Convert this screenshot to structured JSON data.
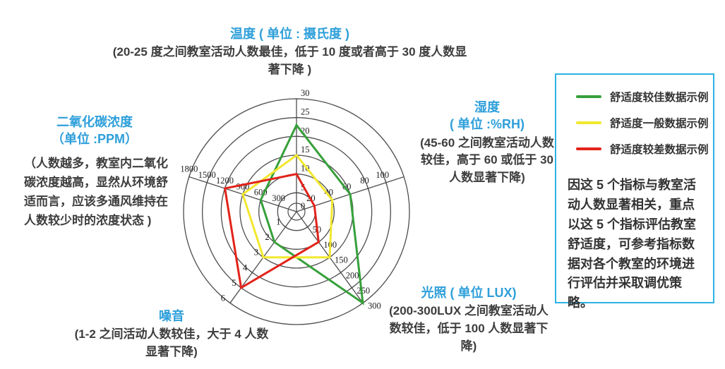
{
  "axis_blocks": {
    "temperature": {
      "title": "温度 ( 单位 : 摄氏度 )",
      "desc": "(20-25 度之间教室活动人数最佳，低于 10 度或者高于 30 度人数显著下降 )"
    },
    "humidity": {
      "title_line1": "湿度",
      "title_line2": "( 单位 :%RH)",
      "desc": "(45-60 之间教室活动人数较佳，高于 60 或低于 30 人数显著下降)"
    },
    "light": {
      "title": "光照 ( 单位 LUX)",
      "desc": "(200-300LUX 之间教室活动人数较佳，低于 100 人数显著下降)"
    },
    "noise": {
      "title": "噪音",
      "desc": "(1-2 之间活动人数较佳，大于 4 人数显著下降)"
    },
    "co2": {
      "title_line1": "二氧化碳浓度",
      "title_line2": "（单位 :PPM）",
      "desc": "（人数越多，教室内二氧化碳浓度越高，显然从环境舒适而言，应该多通风维持在人数较少时的浓度状态 )"
    }
  },
  "note": {
    "text": "因这 5 个指标与教室活动人数显著相关，重点以这 5 个指标评估教室舒适度，可参考指标数据对各个教室的环境进行评估并采取调优策略。"
  },
  "colors": {
    "heading_blue": "#2E9FDA",
    "box_border_cyan": "#2BB3E6",
    "grid": "#4d4d4d",
    "good_green": "#36A03A",
    "average_yellow": "#F2E82E",
    "poor_red": "#E2231A"
  },
  "chart_data": {
    "type": "radar",
    "rings": 6,
    "grid": true,
    "legend_position": "top-right",
    "axes": [
      {
        "key": "temperature",
        "label": "温度",
        "angle_deg": 0,
        "max": 30,
        "tick_values": [
          0,
          5,
          10,
          15,
          20,
          25,
          30
        ],
        "tick_labels": [
          "0",
          "5",
          "10",
          "15",
          "20",
          "25",
          "30"
        ]
      },
      {
        "key": "humidity",
        "label": "湿度",
        "angle_deg": 72,
        "max": 120,
        "tick_values": [
          20,
          40,
          60,
          80,
          100
        ],
        "tick_labels": [
          "20",
          "40",
          "60",
          "80",
          "100"
        ]
      },
      {
        "key": "light",
        "label": "光照",
        "angle_deg": 144,
        "max": 300,
        "tick_values": [
          50,
          100,
          150,
          200,
          250,
          300
        ],
        "tick_labels": [
          "50",
          "100",
          "150",
          "200",
          "250",
          "300"
        ]
      },
      {
        "key": "noise",
        "label": "噪音",
        "angle_deg": 216,
        "max": 6,
        "tick_values": [
          1,
          2,
          3,
          4,
          5,
          6
        ],
        "tick_labels": [
          "1",
          "2",
          "3",
          "4",
          "5",
          "6"
        ]
      },
      {
        "key": "co2",
        "label": "二氧化碳浓度",
        "angle_deg": 288,
        "max": 1800,
        "tick_values": [
          300,
          600,
          900,
          1200,
          1500,
          1800
        ],
        "tick_labels": [
          "300",
          "600",
          "900",
          "1200",
          "1500",
          "1800"
        ]
      }
    ],
    "series": [
      {
        "name": "舒适度较佳数据示例",
        "color": "#36A03A",
        "values": {
          "temperature": 23,
          "humidity": 60,
          "light": 300,
          "noise": 2,
          "co2": 600
        }
      },
      {
        "name": "舒适度一般数据示例",
        "color": "#F2E82E",
        "values": {
          "temperature": 15,
          "humidity": 40,
          "light": 150,
          "noise": 3,
          "co2": 900
        }
      },
      {
        "name": "舒适度较差数据示例",
        "color": "#E2231A",
        "values": {
          "temperature": 10,
          "humidity": 20,
          "light": 100,
          "noise": 5,
          "co2": 1200
        }
      }
    ]
  }
}
